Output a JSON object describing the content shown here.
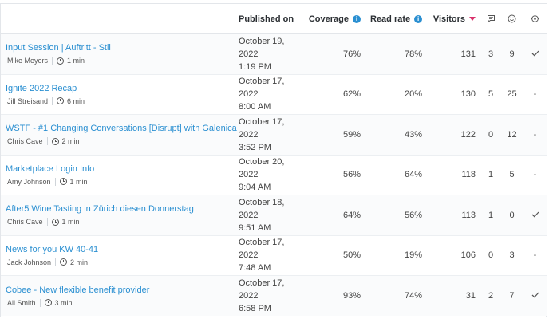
{
  "header": {
    "published_on": "Published on",
    "coverage": "Coverage",
    "read_rate": "Read rate",
    "visitors": "Visitors"
  },
  "colors": {
    "link": "#2a8fd1",
    "sort_accent": "#d9306b",
    "info": "#2a8fd1"
  },
  "rows": [
    {
      "title": "Input Session | Auftritt - Stil",
      "author": "Mike Meyers",
      "read_time": "1 min",
      "date": "October 19, 2022",
      "time": "1:19 PM",
      "coverage": "76%",
      "read_rate": "78%",
      "visitors": "131",
      "comments": "3",
      "reactions": "9",
      "target": "check"
    },
    {
      "title": "Ignite 2022 Recap",
      "author": "Jill Streisand",
      "read_time": "6 min",
      "date": "October 17, 2022",
      "time": "8:00 AM",
      "coverage": "62%",
      "read_rate": "20%",
      "visitors": "130",
      "comments": "5",
      "reactions": "25",
      "target": "-"
    },
    {
      "title": "WSTF - #1 Changing Conversations [Disrupt] with Galenica",
      "author": "Chris Cave",
      "read_time": "2 min",
      "date": "October 17, 2022",
      "time": "3:52 PM",
      "coverage": "59%",
      "read_rate": "43%",
      "visitors": "122",
      "comments": "0",
      "reactions": "12",
      "target": "-"
    },
    {
      "title": "Marketplace Login Info",
      "author": "Amy Johnson",
      "read_time": "1 min",
      "date": "October 20, 2022",
      "time": "9:04 AM",
      "coverage": "56%",
      "read_rate": "64%",
      "visitors": "118",
      "comments": "1",
      "reactions": "5",
      "target": "-"
    },
    {
      "title": "After5 Wine Tasting in Zürich diesen Donnerstag",
      "author": "Chris Cave",
      "read_time": "1 min",
      "date": "October 18, 2022",
      "time": "9:51 AM",
      "coverage": "64%",
      "read_rate": "56%",
      "visitors": "113",
      "comments": "1",
      "reactions": "0",
      "target": "check"
    },
    {
      "title": "News for you KW 40-41",
      "author": "Jack Johnson",
      "read_time": "2 min",
      "date": "October 17, 2022",
      "time": "7:48 AM",
      "coverage": "50%",
      "read_rate": "19%",
      "visitors": "106",
      "comments": "0",
      "reactions": "3",
      "target": "-"
    },
    {
      "title": "Cobee - New flexible benefit provider",
      "author": "Ali Smith",
      "read_time": "3 min",
      "date": "October 17, 2022",
      "time": "6:58 PM",
      "coverage": "93%",
      "read_rate": "74%",
      "visitors": "31",
      "comments": "2",
      "reactions": "7",
      "target": "check"
    }
  ]
}
